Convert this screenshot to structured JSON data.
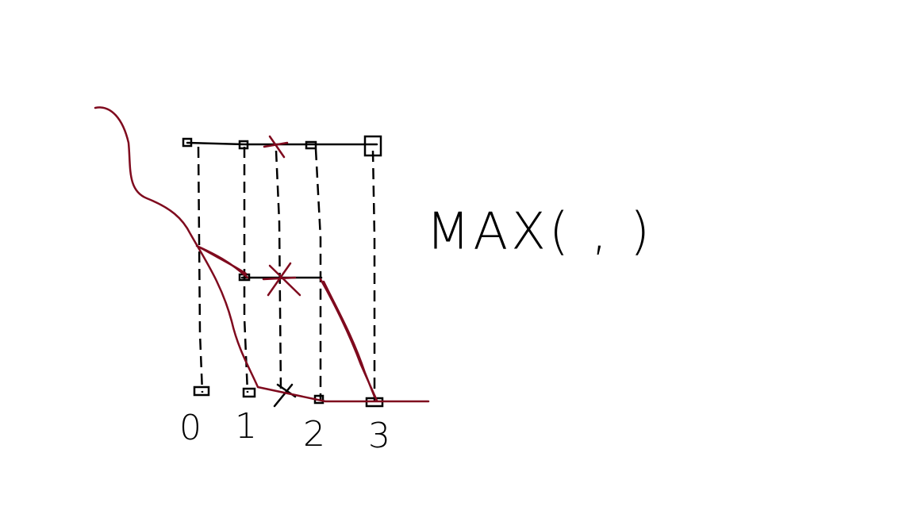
{
  "labels": [
    "0",
    "1",
    "2",
    "3"
  ],
  "formula": "MAX( , )"
}
